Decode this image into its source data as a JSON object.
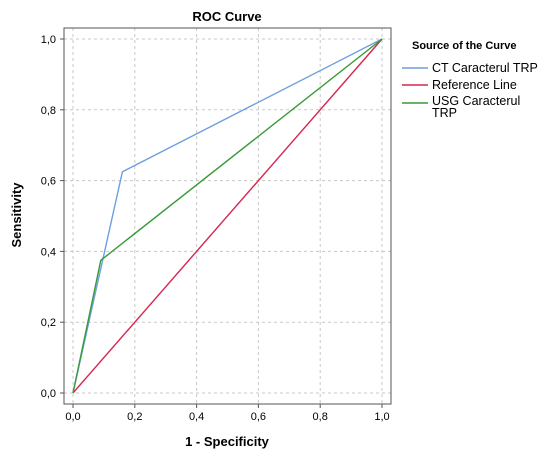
{
  "chart_data": {
    "type": "line",
    "title": "ROC Curve",
    "xlabel": "1 - Specificity",
    "ylabel": "Sensitivity",
    "xlim": [
      0,
      1
    ],
    "ylim": [
      0,
      1
    ],
    "xticks": [
      "0,0",
      "0,2",
      "0,4",
      "0,6",
      "0,8",
      "1,0"
    ],
    "yticks": [
      "0,0",
      "0,2",
      "0,4",
      "0,6",
      "0,8",
      "1,0"
    ],
    "grid": true,
    "legend": {
      "title": "Source of the Curve",
      "placement": "right"
    },
    "series": [
      {
        "name": "CT Caracterul TRP",
        "color": "#6f9fde",
        "x": [
          0,
          0.16,
          1.0
        ],
        "y": [
          0,
          0.625,
          1.0
        ]
      },
      {
        "name": "Reference Line",
        "color": "#d6264f",
        "x": [
          0,
          1.0
        ],
        "y": [
          0,
          1.0
        ]
      },
      {
        "name": "USG Caracterul TRP",
        "color": "#3a9a3a",
        "x": [
          0,
          0.09,
          1.0
        ],
        "y": [
          0,
          0.375,
          1.0
        ]
      }
    ]
  }
}
